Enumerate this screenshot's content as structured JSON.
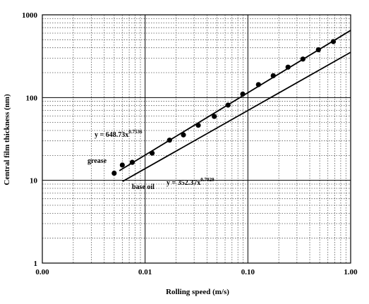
{
  "chart_data": {
    "type": "scatter",
    "title": "",
    "xlabel": "Rolling speed (m/s)",
    "ylabel": "Central film thickness (nm)",
    "xscale": "log",
    "yscale": "log",
    "xlim": [
      0.001,
      1.0
    ],
    "ylim": [
      1,
      1000
    ],
    "x_ticks": [
      0.001,
      0.01,
      0.1,
      1.0
    ],
    "x_tick_labels": [
      "0.00",
      "0.01",
      "0.10",
      "1.00"
    ],
    "y_ticks": [
      1,
      10,
      100,
      1000
    ],
    "y_tick_labels": [
      "1",
      "10",
      "100",
      "1000"
    ],
    "grid": "major solid, minor dotted",
    "series": [
      {
        "name": "grease",
        "marker": "circle",
        "x": [
          0.005,
          0.006,
          0.0075,
          0.0117,
          0.0173,
          0.0236,
          0.0329,
          0.0471,
          0.0641,
          0.0891,
          0.1267,
          0.1765,
          0.2459,
          0.3432,
          0.4854,
          0.6788
        ],
        "y": [
          12.2,
          15.3,
          16.5,
          21.3,
          30.6,
          35.4,
          46.3,
          59.2,
          81.1,
          110.2,
          143.4,
          183.7,
          233.0,
          292.0,
          378.2,
          474.3
        ]
      }
    ],
    "fit_lines": [
      {
        "label": "grease",
        "equation_base": "y = 648.73x",
        "exponent": "0.7536",
        "coef": 648.73,
        "exp": 0.7536,
        "x_range": [
          0.00562,
          1.0
        ]
      },
      {
        "label": "base oil",
        "equation_base": "y = 352.37x",
        "exponent": "0.7029",
        "coef": 352.37,
        "exp": 0.7029,
        "x_range": [
          0.00603,
          1.0
        ]
      }
    ]
  }
}
